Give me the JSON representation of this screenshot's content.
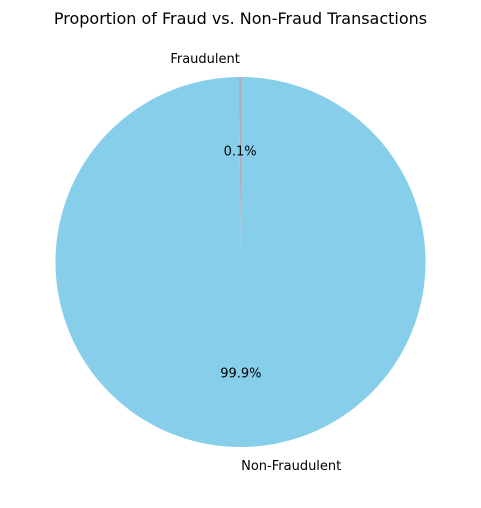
{
  "chart_data": {
    "type": "pie",
    "title": "Proportion of Fraud vs. Non-Fraud Transactions",
    "start_angle": "top, counterclockwise",
    "slices": [
      {
        "label": "Fraudulent",
        "value": 0.1,
        "pct_label": "0.1%",
        "color": "#f08080"
      },
      {
        "label": "Non-Fraudulent",
        "value": 99.9,
        "pct_label": "99.9%",
        "color": "#87ceeb"
      }
    ]
  }
}
